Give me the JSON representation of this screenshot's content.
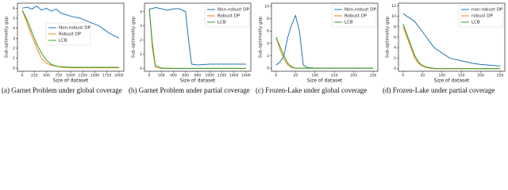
{
  "chart_data": [
    {
      "type": "line",
      "caption": "(a) Garnet Problem under global coverage",
      "xlabel": "Size of dataset",
      "ylabel": "Sub-optimality gap",
      "legend": "center left",
      "x": [
        0,
        100,
        200,
        300,
        400,
        500,
        600,
        700,
        800,
        1000,
        1200,
        1400,
        1600,
        1800,
        2000
      ],
      "xlim": [
        -100,
        2100
      ],
      "xticks": [
        0,
        250,
        500,
        750,
        1000,
        1250,
        1500,
        1750,
        2000
      ],
      "ylim": [
        -0.3,
        6.5
      ],
      "yticks": [
        0,
        1,
        2,
        3,
        4,
        5,
        6
      ],
      "series": [
        {
          "name": "Non-robust DP",
          "color": "#1f77b4",
          "values": [
            6.0,
            6.1,
            5.9,
            6.2,
            5.8,
            6.0,
            5.7,
            5.9,
            5.5,
            5.2,
            5.0,
            4.6,
            4.2,
            3.5,
            3.0
          ]
        },
        {
          "name": "Robust DP",
          "color": "#ff7f0e",
          "values": [
            5.8,
            4.5,
            3.2,
            2.0,
            1.0,
            0.5,
            0.3,
            0.2,
            0.1,
            0.05,
            0.05,
            0.05,
            0.05,
            0.05,
            0.05
          ]
        },
        {
          "name": "LCB",
          "color": "#2ca02c",
          "values": [
            5.8,
            4.8,
            3.6,
            2.4,
            1.5,
            0.8,
            0.4,
            0.2,
            0.15,
            0.1,
            0.1,
            0.1,
            0.1,
            0.1,
            0.1
          ]
        }
      ]
    },
    {
      "type": "line",
      "caption": "(b) Garnet Problem under partial coverage",
      "xlabel": "Size of dataset",
      "ylabel": "Sub-optimality gap",
      "legend": "upper right",
      "x": [
        0,
        50,
        100,
        200,
        300,
        400,
        500,
        600,
        650,
        700,
        800,
        1000,
        1200,
        1400,
        1600
      ],
      "xlim": [
        -80,
        1680
      ],
      "xticks": [
        0,
        200,
        400,
        600,
        800,
        1000,
        1200,
        1400,
        1600
      ],
      "ylim": [
        -0.2,
        4.6
      ],
      "yticks": [
        0,
        1,
        2,
        3,
        4
      ],
      "series": [
        {
          "name": "Non-robust DP",
          "color": "#1f77b4",
          "values": [
            4.2,
            4.2,
            4.3,
            4.2,
            4.1,
            4.2,
            4.2,
            4.0,
            2.0,
            0.3,
            0.25,
            0.3,
            0.3,
            0.3,
            0.3
          ]
        },
        {
          "name": "Robust DP",
          "color": "#ff7f0e",
          "values": [
            4.2,
            1.5,
            0.1,
            0,
            0,
            0,
            0,
            0,
            0,
            0,
            0,
            0,
            0,
            0,
            0
          ]
        },
        {
          "name": "LCB",
          "color": "#2ca02c",
          "values": [
            4.2,
            1.8,
            0.2,
            0.02,
            0,
            0,
            0,
            0,
            0,
            0,
            0,
            0,
            0,
            0,
            0
          ]
        }
      ]
    },
    {
      "type": "line",
      "caption": "(c) Frozen-Lake under global coverage",
      "xlabel": "Size of dataset",
      "ylabel": "Sub-optimality gap",
      "legend": "upper right",
      "x": [
        0,
        10,
        20,
        30,
        40,
        50,
        60,
        70,
        80,
        100,
        150,
        200,
        250
      ],
      "xlim": [
        -12,
        262
      ],
      "xticks": [
        0,
        50,
        100,
        150,
        200,
        250
      ],
      "ylim": [
        -0.5,
        10.5
      ],
      "yticks": [
        0,
        2,
        4,
        6,
        8,
        10
      ],
      "series": [
        {
          "name": "Non-robust DP",
          "color": "#1f77b4",
          "values": [
            0.5,
            1,
            2,
            5,
            7,
            8.5,
            6,
            0.5,
            0.1,
            0,
            0,
            0,
            0
          ]
        },
        {
          "name": "Robust DP",
          "color": "#ff7f0e",
          "values": [
            5,
            3,
            1.5,
            0.5,
            0.1,
            0,
            0,
            0,
            0,
            0,
            0,
            0,
            0
          ]
        },
        {
          "name": "LCB",
          "color": "#2ca02c",
          "values": [
            5,
            3.5,
            2,
            0.8,
            0.2,
            0,
            0,
            0,
            0,
            0,
            0,
            0,
            0
          ]
        }
      ]
    },
    {
      "type": "line",
      "caption": "(d) Frozen-Lake under partial coverage",
      "xlabel": "Size of dataset",
      "ylabel": "Sub-optimality gap",
      "legend": "upper right",
      "x": [
        0,
        10,
        20,
        30,
        40,
        50,
        60,
        80,
        100,
        120,
        150,
        180,
        200,
        250
      ],
      "xlim": [
        -12,
        262
      ],
      "xticks": [
        0,
        50,
        100,
        150,
        200,
        250
      ],
      "ylim": [
        -0.5,
        12.5
      ],
      "yticks": [
        0,
        2,
        4,
        6,
        8,
        10,
        12
      ],
      "series": [
        {
          "name": "non-robust DP",
          "color": "#1f77b4",
          "values": [
            10.5,
            10,
            9.5,
            9,
            8,
            7,
            6,
            4,
            3,
            2,
            1.5,
            1,
            0.8,
            0.5
          ]
        },
        {
          "name": "robust DP",
          "color": "#ff7f0e",
          "values": [
            8,
            6,
            4,
            2,
            1,
            0.5,
            0.2,
            0,
            0,
            0,
            0,
            0,
            0,
            0
          ]
        },
        {
          "name": "LCB",
          "color": "#2ca02c",
          "values": [
            8.5,
            6.5,
            4.5,
            2.5,
            1.2,
            0.6,
            0.3,
            0.05,
            0,
            0,
            0,
            0,
            0,
            0
          ]
        }
      ]
    }
  ]
}
